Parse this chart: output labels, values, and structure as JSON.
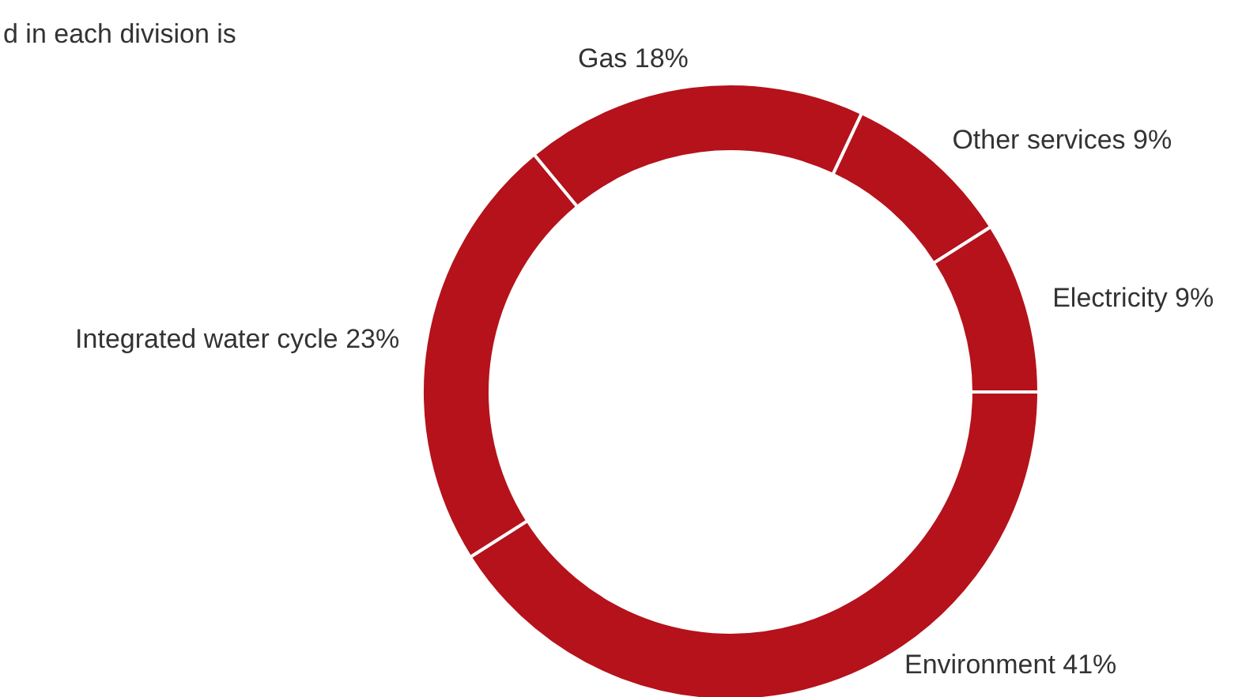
{
  "chart_data": {
    "type": "donut",
    "annotations": [
      "d in each division is"
    ],
    "categories": [
      "Gas 18%",
      "Other services  9%",
      "Electricity  9%",
      "Environment 41%",
      "Integrated water cycle  23%"
    ],
    "values": [
      18,
      9,
      9,
      41,
      23
    ],
    "colors": [
      "#b5121b",
      "#b5121b",
      "#b5121b",
      "#b5121b",
      "#b5121b"
    ]
  }
}
